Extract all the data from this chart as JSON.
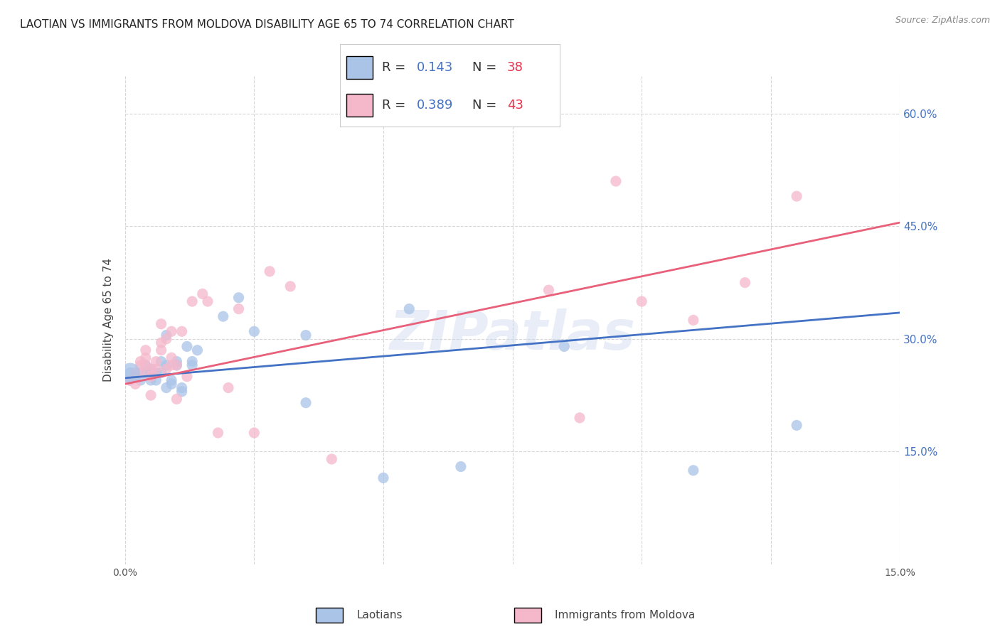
{
  "title": "LAOTIAN VS IMMIGRANTS FROM MOLDOVA DISABILITY AGE 65 TO 74 CORRELATION CHART",
  "source": "Source: ZipAtlas.com",
  "ylabel": "Disability Age 65 to 74",
  "xlim": [
    0.0,
    0.15
  ],
  "ylim": [
    0.0,
    0.65
  ],
  "ytick_positions": [
    0.15,
    0.3,
    0.45,
    0.6
  ],
  "ytick_labels": [
    "15.0%",
    "30.0%",
    "45.0%",
    "60.0%"
  ],
  "blue_R": 0.143,
  "blue_N": 38,
  "pink_R": 0.389,
  "pink_N": 43,
  "blue_color": "#aac4e8",
  "pink_color": "#f5b8cb",
  "blue_line_color": "#4472c4",
  "pink_line_color": "#e8607a",
  "watermark": "ZIPatlas",
  "blue_x": [
    0.001,
    0.001,
    0.002,
    0.003,
    0.003,
    0.004,
    0.004,
    0.005,
    0.005,
    0.005,
    0.006,
    0.006,
    0.007,
    0.007,
    0.008,
    0.008,
    0.008,
    0.009,
    0.009,
    0.01,
    0.01,
    0.011,
    0.011,
    0.012,
    0.013,
    0.013,
    0.014,
    0.019,
    0.022,
    0.025,
    0.035,
    0.035,
    0.05,
    0.055,
    0.065,
    0.085,
    0.11,
    0.13
  ],
  "blue_y": [
    0.255,
    0.245,
    0.25,
    0.255,
    0.245,
    0.265,
    0.255,
    0.26,
    0.255,
    0.245,
    0.255,
    0.245,
    0.255,
    0.27,
    0.305,
    0.265,
    0.235,
    0.245,
    0.24,
    0.27,
    0.265,
    0.235,
    0.23,
    0.29,
    0.27,
    0.265,
    0.285,
    0.33,
    0.355,
    0.31,
    0.215,
    0.305,
    0.115,
    0.34,
    0.13,
    0.29,
    0.125,
    0.185
  ],
  "pink_x": [
    0.001,
    0.002,
    0.002,
    0.003,
    0.003,
    0.003,
    0.004,
    0.004,
    0.004,
    0.005,
    0.005,
    0.005,
    0.006,
    0.006,
    0.007,
    0.007,
    0.007,
    0.008,
    0.008,
    0.009,
    0.009,
    0.009,
    0.01,
    0.01,
    0.011,
    0.012,
    0.013,
    0.015,
    0.016,
    0.018,
    0.02,
    0.022,
    0.025,
    0.028,
    0.032,
    0.04,
    0.082,
    0.088,
    0.095,
    0.1,
    0.11,
    0.12,
    0.13
  ],
  "pink_y": [
    0.245,
    0.255,
    0.24,
    0.255,
    0.265,
    0.27,
    0.275,
    0.285,
    0.265,
    0.25,
    0.26,
    0.225,
    0.27,
    0.26,
    0.295,
    0.32,
    0.285,
    0.26,
    0.3,
    0.265,
    0.31,
    0.275,
    0.265,
    0.22,
    0.31,
    0.25,
    0.35,
    0.36,
    0.35,
    0.175,
    0.235,
    0.34,
    0.175,
    0.39,
    0.37,
    0.14,
    0.365,
    0.195,
    0.51,
    0.35,
    0.325,
    0.375,
    0.49
  ],
  "blue_line_x0": 0.0,
  "blue_line_y0": 0.248,
  "blue_line_x1": 0.15,
  "blue_line_y1": 0.335,
  "pink_line_x0": 0.0,
  "pink_line_y0": 0.24,
  "pink_line_x1": 0.15,
  "pink_line_y1": 0.455,
  "grid_color": "#cccccc",
  "background_color": "#ffffff",
  "title_fontsize": 11,
  "axis_label_fontsize": 10,
  "tick_fontsize": 10,
  "legend_text_color": "#4472c4",
  "legend_r_color": "#333333"
}
